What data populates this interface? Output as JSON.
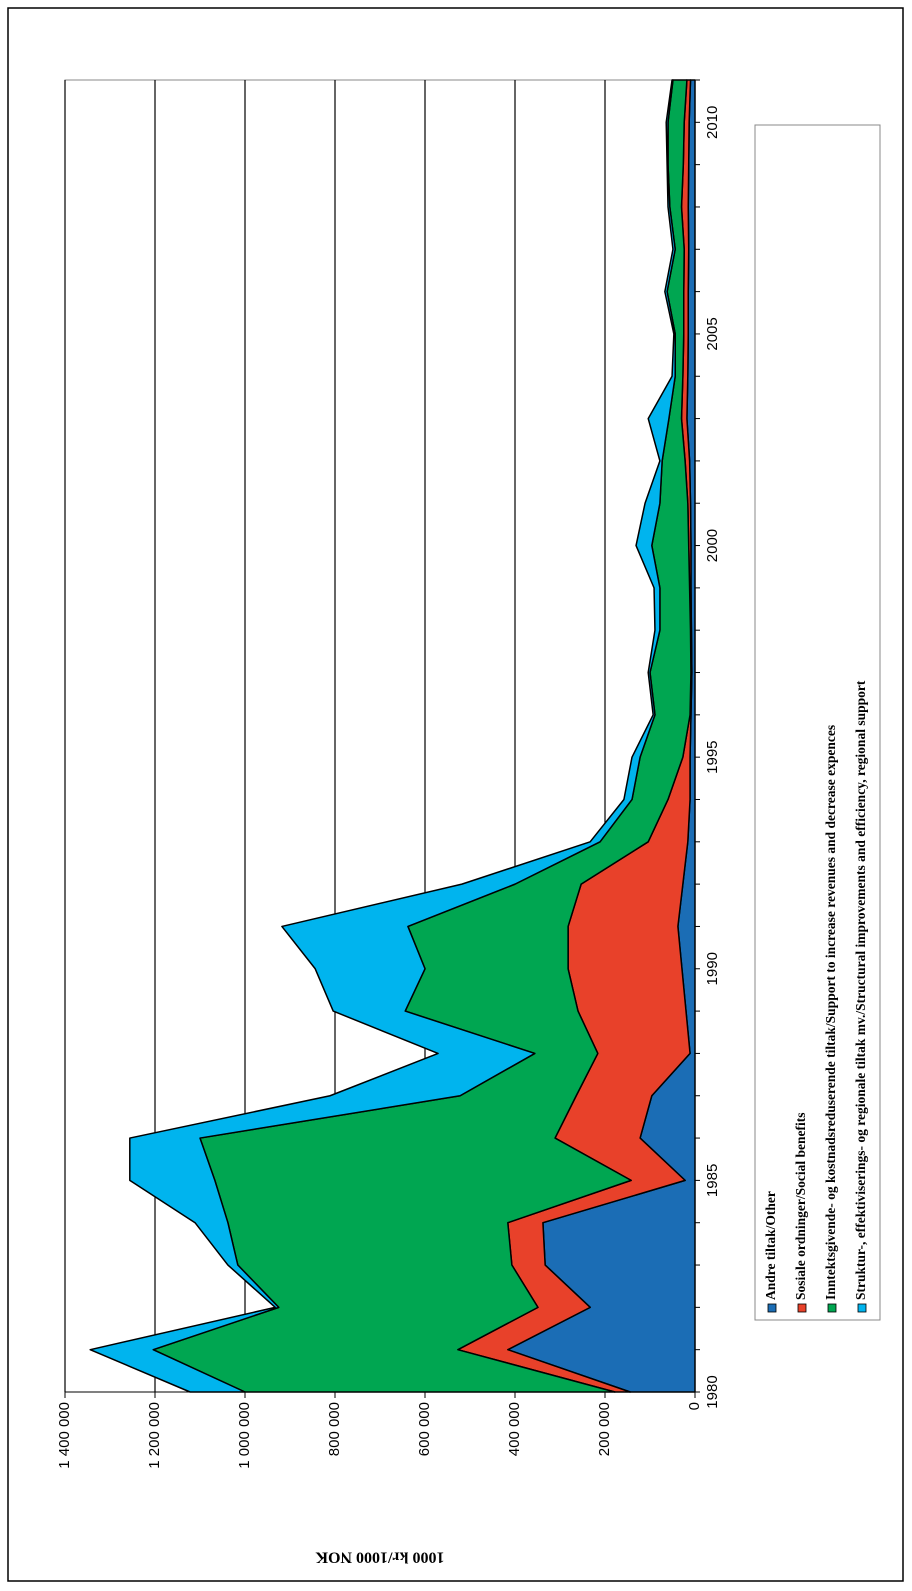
{
  "chart_data": {
    "type": "stacked-area",
    "y_label": "1000 kr/1000 NOK",
    "x": [
      1980,
      1981,
      1982,
      1983,
      1984,
      1985,
      1986,
      1987,
      1988,
      1989,
      1990,
      1991,
      1992,
      1993,
      1994,
      1995,
      1996,
      1997,
      1998,
      1999,
      2000,
      2001,
      2002,
      2003,
      2004,
      2005,
      2006,
      2007,
      2008,
      2009,
      2010,
      2011
    ],
    "xlim": [
      1980,
      2011
    ],
    "xticks": [
      1980,
      1985,
      1990,
      1995,
      2000,
      2005,
      2010
    ],
    "ylim": [
      0,
      1400000
    ],
    "yticks": [
      0,
      {
        "value": 200000,
        "label": "200 000"
      },
      {
        "value": 400000,
        "label": "400 000"
      },
      {
        "value": 600000,
        "label": "600 000"
      },
      {
        "value": 800000,
        "label": "800 000"
      },
      {
        "value": 1000000,
        "label": "1 000 000"
      },
      {
        "value": 1200000,
        "label": "1 200 000"
      },
      {
        "value": 1400000,
        "label": "1 400 000"
      }
    ],
    "grid": true,
    "legend": "right",
    "series": [
      {
        "name": "Andre tiltak/Other",
        "color": "#1b6db5",
        "values": [
          144000,
          416000,
          233000,
          333000,
          338000,
          22000,
          122000,
          96000,
          11000,
          20000,
          29000,
          38000,
          27000,
          16000,
          11000,
          11000,
          9000,
          7000,
          8000,
          9000,
          9000,
          10000,
          12000,
          18000,
          16000,
          15000,
          15000,
          14000,
          15000,
          14000,
          13000,
          10000
        ]
      },
      {
        "name": "Sosiale ordninger/Social benefits",
        "color": "#e8412a",
        "values": [
          34000,
          111000,
          116000,
          74000,
          78000,
          120000,
          189000,
          168000,
          205000,
          240000,
          253000,
          244000,
          226000,
          88000,
          49000,
          16000,
          2000,
          2000,
          2000,
          3000,
          5000,
          6000,
          10000,
          12000,
          11000,
          10000,
          10000,
          10000,
          15000,
          12000,
          11000,
          8000
        ]
      },
      {
        "name": "Inntektsgivende- og kostnadsreduserende tiltak/Support to increase revenues and decrease expences",
        "color": "#00a651",
        "values": [
          822000,
          677000,
          576000,
          609000,
          622000,
          925000,
          789000,
          258000,
          140000,
          384000,
          318000,
          356000,
          147000,
          107000,
          80000,
          95000,
          78000,
          91000,
          68000,
          66000,
          82000,
          62000,
          51000,
          28000,
          17000,
          19000,
          37000,
          20000,
          26000,
          34000,
          36000,
          31000
        ]
      },
      {
        "name": "Struktur-, effektiviserings- og regionale tiltak mv./Structural improvements and efficiency, regional support",
        "color": "#00b4ee",
        "values": [
          122000,
          140000,
          8000,
          22000,
          73000,
          189000,
          156000,
          289000,
          215000,
          160000,
          244000,
          280000,
          118000,
          22000,
          18000,
          18000,
          4000,
          4000,
          11000,
          13000,
          35000,
          33000,
          5000,
          46000,
          7000,
          3000,
          5000,
          5000,
          4000,
          2000,
          4000,
          2000
        ]
      }
    ]
  }
}
